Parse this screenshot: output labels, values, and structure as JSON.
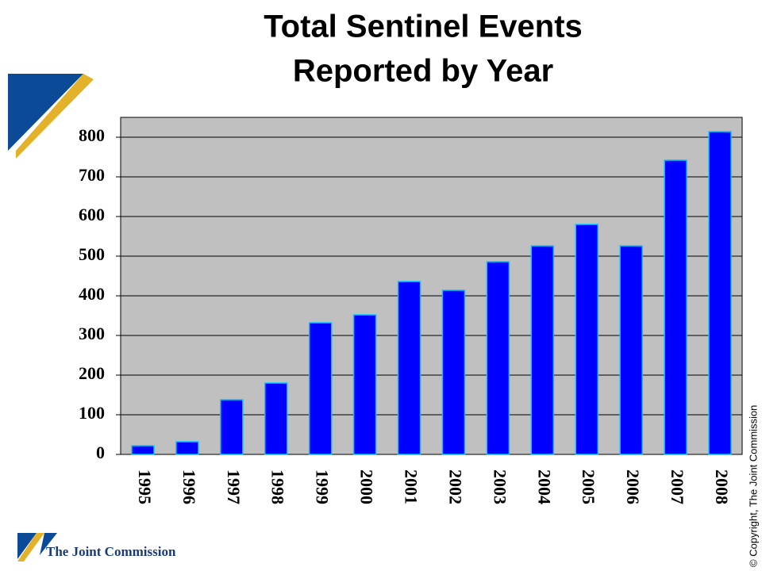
{
  "chart_data": {
    "type": "bar",
    "title": [
      "Total Sentinel Events",
      "Reported by Year"
    ],
    "categories": [
      "1995",
      "1996",
      "1997",
      "1998",
      "1999",
      "2000",
      "2001",
      "2002",
      "2003",
      "2004",
      "2005",
      "2006",
      "2007",
      "2008"
    ],
    "values": [
      22,
      32,
      138,
      180,
      332,
      352,
      436,
      414,
      486,
      526,
      580,
      526,
      742,
      814
    ],
    "color": "#0000ff",
    "ylim": [
      0,
      850
    ],
    "yticks": [
      0,
      100,
      200,
      300,
      400,
      500,
      600,
      700,
      800
    ],
    "grid": true
  },
  "logo": "The Joint Commission",
  "copyright": "© Copyright,  The Joint Commission"
}
